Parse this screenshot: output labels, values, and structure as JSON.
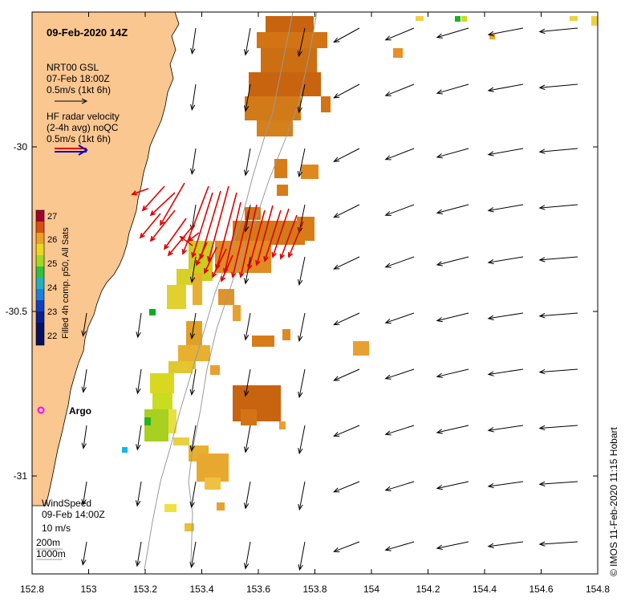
{
  "title": "09-Feb-2020 14Z",
  "glider_legend": {
    "line1": "NRT00 GSL",
    "line2": "07-Feb 18:00Z",
    "line3": "0.5m/s (1kt 6h)"
  },
  "radar_legend": {
    "line1": "HF radar velocity",
    "line2": "(2-4h avg) noQC",
    "line3": "0.5m/s (1kt 6h)"
  },
  "colorbar": {
    "label": "Filled 4h comp. p50, All Sats",
    "ticks": [
      "27",
      "26",
      "25",
      "24",
      "23",
      "22"
    ]
  },
  "argo_label": "Argo",
  "wind_legend": {
    "line1": "WindSpeed",
    "line2": "09-Feb 14:00Z",
    "line3": "10 m/s"
  },
  "isobaths": {
    "shallow": "200m",
    "deep": "1000m"
  },
  "credit": "© IMOS 11-Feb-2020 11:15 Hobart",
  "axis": {
    "lon_ticks": [
      "152.8",
      "153",
      "153.2",
      "153.4",
      "153.6",
      "153.8",
      "154",
      "154.2",
      "154.4",
      "154.6",
      "154.8"
    ],
    "lat_ticks": [
      "-30",
      "-30.5",
      "-31"
    ]
  },
  "colors": {
    "land": "#fbc791",
    "radar": "#e00000",
    "wind": "#000000",
    "argo": "#ff00ff",
    "legend_blue": "#0000cc"
  }
}
